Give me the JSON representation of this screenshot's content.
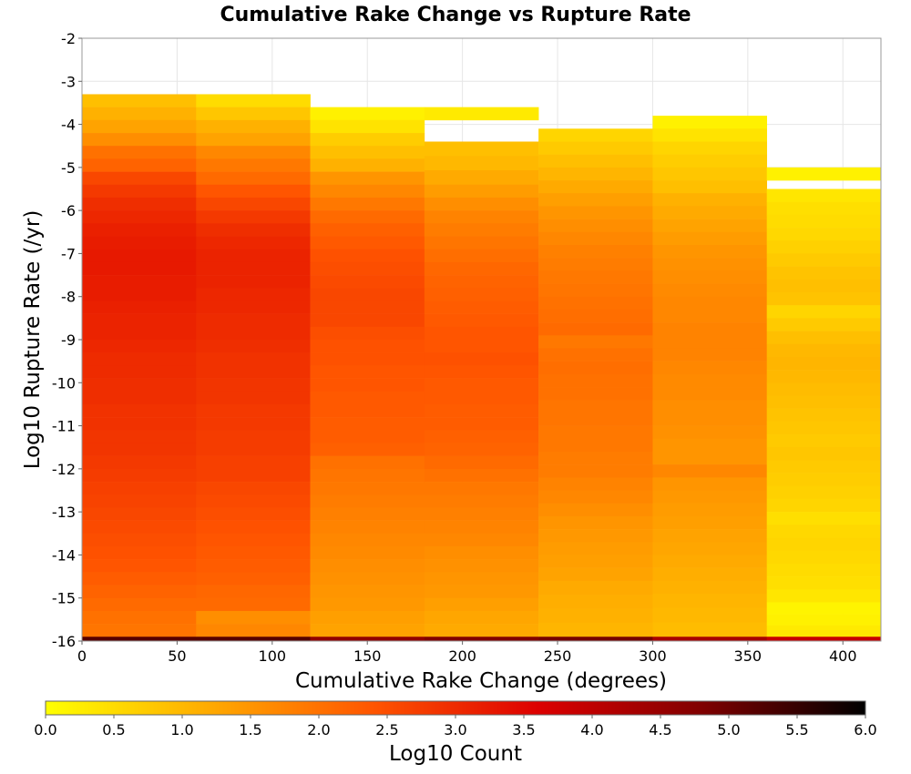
{
  "chart_data": {
    "type": "heatmap",
    "title": "Cumulative Rake Change vs Rupture Rate",
    "xlabel": "Cumulative Rake Change (degrees)",
    "ylabel": "Log10 Rupture Rate (/yr)",
    "colorbar_label": "Log10 Count",
    "xlim": [
      0,
      420
    ],
    "ylim": [
      -16,
      -2
    ],
    "x_ticks": [
      "0",
      "50",
      "100",
      "150",
      "200",
      "250",
      "300",
      "350",
      "400"
    ],
    "y_ticks": [
      "-2",
      "-3",
      "-4",
      "-5",
      "-6",
      "-7",
      "-8",
      "-9",
      "-10",
      "-11",
      "-12",
      "-13",
      "-14",
      "-15",
      "-16"
    ],
    "colorbar_ticks": [
      "0.0",
      "0.5",
      "1.0",
      "1.5",
      "2.0",
      "2.5",
      "3.0",
      "3.5",
      "4.0",
      "4.5",
      "5.0",
      "5.5",
      "6.0"
    ],
    "colorbar_range": [
      0,
      6
    ],
    "colorscale": [
      "#ffff00",
      "#ffaa00",
      "#ff5500",
      "#dd0000",
      "#800000",
      "#000000"
    ],
    "x_bins": [
      [
        0,
        60
      ],
      [
        60,
        120
      ],
      [
        120,
        180
      ],
      [
        180,
        240
      ],
      [
        240,
        300
      ],
      [
        300,
        360
      ],
      [
        360,
        420
      ]
    ],
    "y_bin_size": 0.3,
    "columns": [
      {
        "x_range": [
          0,
          60
        ],
        "segments": [
          {
            "from": -3.3,
            "to": -4.5,
            "values": [
              0.9,
              1.1,
              1.3,
              1.6
            ]
          },
          {
            "from": -4.5,
            "to": -5.1,
            "values": [
              2.0,
              2.2
            ]
          },
          {
            "from": -5.1,
            "to": -6.3,
            "values": [
              2.6,
              2.8,
              2.95,
              3.05
            ]
          },
          {
            "from": -6.3,
            "to": -9.0,
            "values": [
              3.15,
              3.2,
              3.25,
              3.25,
              3.2,
              3.2,
              3.15,
              3.1,
              3.1
            ]
          },
          {
            "from": -9.0,
            "to": -12.0,
            "values": [
              3.05,
              3.0,
              3.0,
              2.95,
              2.95,
              2.9,
              2.9,
              2.85,
              2.85,
              2.8
            ]
          },
          {
            "from": -12.0,
            "to": -14.4,
            "values": [
              2.75,
              2.7,
              2.65,
              2.6,
              2.55,
              2.5,
              2.45,
              2.4
            ]
          },
          {
            "from": -14.4,
            "to": -15.9,
            "values": [
              2.3,
              2.2,
              2.1,
              2.0,
              1.95
            ]
          },
          {
            "from": -15.9,
            "to": -16.0,
            "values": [
              5.2
            ]
          }
        ]
      },
      {
        "x_range": [
          60,
          120
        ],
        "segments": [
          {
            "from": -3.3,
            "to": -3.9,
            "values": [
              0.5,
              0.8
            ]
          },
          {
            "from": -3.9,
            "to": -4.5,
            "values": [
              1.1,
              1.3
            ]
          },
          {
            "from": -4.5,
            "to": -5.4,
            "values": [
              1.7,
              1.9,
              2.1
            ]
          },
          {
            "from": -5.4,
            "to": -6.6,
            "values": [
              2.4,
              2.6,
              2.8,
              2.95
            ]
          },
          {
            "from": -6.6,
            "to": -9.3,
            "values": [
              3.05,
              3.1,
              3.1,
              3.1,
              3.05,
              3.05,
              3.0,
              3.0,
              2.95
            ]
          },
          {
            "from": -9.3,
            "to": -12.3,
            "values": [
              2.9,
              2.9,
              2.85,
              2.85,
              2.8,
              2.8,
              2.75,
              2.75,
              2.7,
              2.7
            ]
          },
          {
            "from": -12.3,
            "to": -14.7,
            "values": [
              2.6,
              2.55,
              2.5,
              2.45,
              2.4,
              2.35,
              2.3,
              2.25
            ]
          },
          {
            "from": -14.7,
            "to": -15.9,
            "values": [
              2.15,
              2.1,
              1.6,
              1.7
            ]
          },
          {
            "from": -15.9,
            "to": -16.0,
            "values": [
              5.2
            ]
          }
        ]
      },
      {
        "x_range": [
          120,
          180
        ],
        "segments": [
          {
            "from": -3.6,
            "to": -4.2,
            "values": [
              0.2,
              0.4
            ]
          },
          {
            "from": -4.2,
            "to": -5.1,
            "values": [
              0.7,
              0.9,
              1.1
            ]
          },
          {
            "from": -5.1,
            "to": -6.3,
            "values": [
              1.5,
              1.7,
              1.9,
              2.1
            ]
          },
          {
            "from": -6.3,
            "to": -8.7,
            "values": [
              2.25,
              2.35,
              2.45,
              2.5,
              2.55,
              2.6,
              2.6,
              2.6
            ]
          },
          {
            "from": -8.7,
            "to": -11.7,
            "values": [
              2.5,
              2.45,
              2.45,
              2.4,
              2.4,
              2.35,
              2.35,
              2.3,
              2.3,
              2.25
            ]
          },
          {
            "from": -11.7,
            "to": -14.4,
            "values": [
              2.0,
              1.95,
              1.9,
              1.85,
              1.8,
              1.75,
              1.7,
              1.65,
              1.6
            ]
          },
          {
            "from": -14.4,
            "to": -15.9,
            "values": [
              1.55,
              1.5,
              1.45,
              1.35,
              1.3
            ]
          },
          {
            "from": -15.9,
            "to": -16.0,
            "values": [
              4.6
            ]
          }
        ]
      },
      {
        "x_range": [
          180,
          240
        ],
        "segments": [
          {
            "from": -3.6,
            "to": -3.9,
            "values": [
              0.3
            ]
          },
          {
            "from": -4.4,
            "to": -5.4,
            "values": [
              0.9,
              1.0,
              1.2
            ]
          },
          {
            "from": -5.4,
            "to": -6.6,
            "values": [
              1.4,
              1.6,
              1.75,
              1.85
            ]
          },
          {
            "from": -6.6,
            "to": -9.0,
            "values": [
              1.95,
              2.05,
              2.15,
              2.2,
              2.25,
              2.3,
              2.35,
              2.4
            ]
          },
          {
            "from": -9.0,
            "to": -12.0,
            "values": [
              2.4,
              2.45,
              2.4,
              2.35,
              2.35,
              2.3,
              2.3,
              2.25,
              2.2,
              2.1
            ]
          },
          {
            "from": -12.0,
            "to": -14.7,
            "values": [
              2.0,
              1.9,
              1.85,
              1.8,
              1.75,
              1.7,
              1.6,
              1.55,
              1.5
            ]
          },
          {
            "from": -14.7,
            "to": -15.9,
            "values": [
              1.45,
              1.35,
              1.25,
              1.2
            ]
          },
          {
            "from": -15.9,
            "to": -16.0,
            "values": [
              4.8
            ]
          }
        ]
      },
      {
        "x_range": [
          240,
          300
        ],
        "segments": [
          {
            "from": -4.1,
            "to": -5.0,
            "values": [
              0.6,
              0.75,
              0.9
            ]
          },
          {
            "from": -5.0,
            "to": -6.2,
            "values": [
              1.05,
              1.2,
              1.35,
              1.5
            ]
          },
          {
            "from": -6.2,
            "to": -8.9,
            "values": [
              1.6,
              1.7,
              1.8,
              1.85,
              1.9,
              1.95,
              2.0,
              2.05,
              2.1
            ]
          },
          {
            "from": -8.9,
            "to": -12.2,
            "values": [
              1.9,
              2.0,
              2.05,
              2.0,
              2.0,
              1.95,
              1.95,
              1.9,
              1.9,
              1.85,
              1.85
            ]
          },
          {
            "from": -12.2,
            "to": -14.6,
            "values": [
              1.75,
              1.7,
              1.6,
              1.5,
              1.45,
              1.4,
              1.35,
              1.3
            ]
          },
          {
            "from": -14.6,
            "to": -15.9,
            "values": [
              1.2,
              1.15,
              1.1,
              1.05
            ]
          },
          {
            "from": -15.9,
            "to": -16.0,
            "values": [
              4.9
            ]
          }
        ]
      },
      {
        "x_range": [
          300,
          360
        ],
        "segments": [
          {
            "from": -3.8,
            "to": -4.4,
            "values": [
              0.2,
              0.4
            ]
          },
          {
            "from": -4.4,
            "to": -5.6,
            "values": [
              0.6,
              0.7,
              0.8,
              0.9
            ]
          },
          {
            "from": -5.6,
            "to": -7.1,
            "values": [
              1.1,
              1.2,
              1.3,
              1.4,
              1.5
            ]
          },
          {
            "from": -7.1,
            "to": -9.8,
            "values": [
              1.55,
              1.6,
              1.65,
              1.7,
              1.7,
              1.75,
              1.75,
              1.75,
              1.7
            ]
          },
          {
            "from": -9.8,
            "to": -12.5,
            "values": [
              1.65,
              1.65,
              1.6,
              1.6,
              1.55,
              1.5,
              1.5,
              1.7,
              1.5
            ]
          },
          {
            "from": -12.5,
            "to": -14.9,
            "values": [
              1.45,
              1.4,
              1.35,
              1.3,
              1.25,
              1.2,
              1.15,
              1.1
            ]
          },
          {
            "from": -14.9,
            "to": -15.9,
            "values": [
              1.05,
              1.0,
              0.95
            ]
          },
          {
            "from": -15.9,
            "to": -16.0,
            "values": [
              4.3
            ]
          }
        ]
      },
      {
        "x_range": [
          360,
          420
        ],
        "segments": [
          {
            "from": -5.0,
            "to": -5.3,
            "values": [
              0.2
            ]
          },
          {
            "from": -5.5,
            "to": -6.4,
            "values": [
              0.35,
              0.45,
              0.5
            ]
          },
          {
            "from": -6.4,
            "to": -8.2,
            "values": [
              0.55,
              0.65,
              0.75,
              0.85,
              0.9,
              0.85
            ]
          },
          {
            "from": -8.2,
            "to": -10.6,
            "values": [
              0.6,
              0.75,
              0.9,
              1.0,
              1.05,
              1.0,
              0.95,
              0.9
            ]
          },
          {
            "from": -10.6,
            "to": -13.3,
            "values": [
              0.85,
              0.8,
              0.75,
              0.8,
              0.75,
              0.7,
              0.65,
              0.6,
              0.45
            ]
          },
          {
            "from": -13.3,
            "to": -15.1,
            "values": [
              0.55,
              0.6,
              0.55,
              0.5,
              0.45,
              0.35
            ]
          },
          {
            "from": -15.1,
            "to": -15.9,
            "values": [
              0.15,
              0.2,
              0.3
            ]
          },
          {
            "from": -15.9,
            "to": -16.0,
            "values": [
              3.9
            ]
          }
        ]
      }
    ]
  }
}
